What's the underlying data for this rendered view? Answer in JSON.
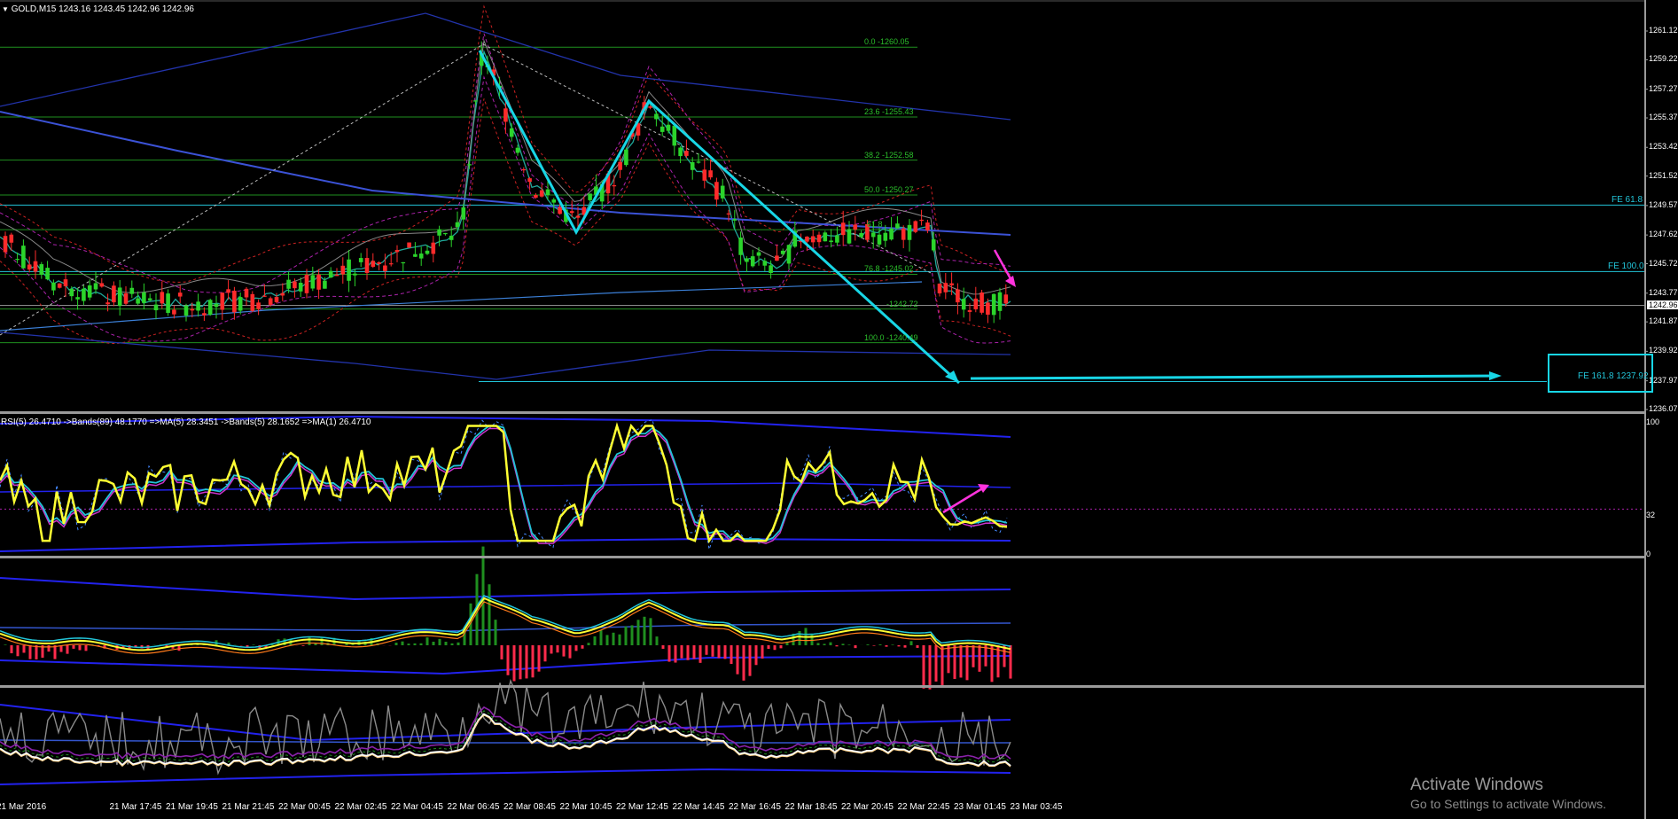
{
  "main_header": {
    "symbol_label": "GOLD,M15",
    "ohlc": "1243.16 1243.45 1242.96 1242.96"
  },
  "rsi_header": {
    "label": "RSI(5) 26.4710 ->Bands(89) 48.1770 =>MA(5) 28.3451 ->Bands(5) 28.1652 =>MA(1) 26.4710"
  },
  "price_axis": [
    "1261.12",
    "1259.22",
    "1257.27",
    "1255.37",
    "1253.42",
    "1251.52",
    "1249.57",
    "1247.62",
    "1245.72",
    "1243.77",
    "1241.87",
    "1239.92",
    "1237.97",
    "1236.07"
  ],
  "current_price": "1242.96",
  "rsi_axis": [
    "100",
    "32",
    "0"
  ],
  "time_axis": [
    "21 Mar 2016",
    "21 Mar 17:45",
    "21 Mar 19:45",
    "21 Mar 21:45",
    "22 Mar 00:45",
    "22 Mar 02:45",
    "22 Mar 04:45",
    "22 Mar 06:45",
    "22 Mar 08:45",
    "22 Mar 10:45",
    "22 Mar 12:45",
    "22 Mar 14:45",
    "22 Mar 16:45",
    "22 Mar 18:45",
    "22 Mar 20:45",
    "22 Mar 22:45",
    "23 Mar 01:45",
    "23 Mar 03:45"
  ],
  "fib_levels": [
    {
      "label": "0.0 -1260.05",
      "price": 1260.05
    },
    {
      "label": "23.6 -1255.43",
      "price": 1255.43
    },
    {
      "label": "38.2 -1252.58",
      "price": 1252.58
    },
    {
      "label": "50.0 -1250.27",
      "price": 1250.27
    },
    {
      "label": "61.8",
      "price": 1247.97
    },
    {
      "label": "76.8 -1245.02",
      "price": 1245.02
    },
    {
      "label": "-1242.72",
      "price": 1242.72
    },
    {
      "label": "100.0 -1240.49",
      "price": 1240.49
    }
  ],
  "fe_levels": [
    {
      "label": "FE 61.8",
      "price": 1249.6
    },
    {
      "label": "FE 100.0",
      "price": 1245.2
    },
    {
      "label": "FE 161.8 1237.92",
      "price": 1237.92
    }
  ],
  "watermark": {
    "title": "Activate Windows",
    "subtitle": "Go to Settings to activate Windows."
  },
  "colors": {
    "bull": "#2bd42b",
    "bear": "#ff2b2b",
    "fib": "#1f8f1f",
    "fe": "#22c4d8",
    "arrow": "#18d6e6",
    "magenta": "#ff33dd",
    "yellow": "#ffff33",
    "blue": "#2222ee"
  }
}
